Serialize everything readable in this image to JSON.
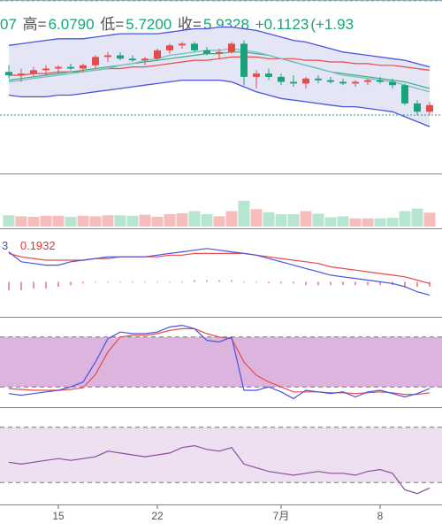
{
  "header": {
    "open_value_fragment": "07",
    "high_label": "高=",
    "high_value": "6.0790",
    "low_label": "低=",
    "low_value": "5.7200",
    "close_label": "收=",
    "close_value": "5.9328",
    "change": "+0.1123",
    "change_pct_fragment": "(+1.93"
  },
  "colors": {
    "up": "#e84a4a",
    "down": "#1aa37a",
    "band_fill": "#e4e6f6",
    "band_line": "#4a52e0",
    "macd_line": "#4a52e0",
    "signal_line": "#e84a4a",
    "kdj_fill": "#dcb4de",
    "rsi_fill": "#efe0f1"
  },
  "chart_data": [
    {
      "type": "candlestick",
      "name": "price",
      "ylim": [
        5.4,
        6.2
      ],
      "candles": [
        {
          "o": 5.98,
          "h": 6.02,
          "l": 5.94,
          "c": 5.96
        },
        {
          "o": 5.96,
          "h": 6.0,
          "l": 5.92,
          "c": 5.97
        },
        {
          "o": 5.97,
          "h": 6.01,
          "l": 5.95,
          "c": 5.99
        },
        {
          "o": 5.99,
          "h": 6.02,
          "l": 5.96,
          "c": 6.0
        },
        {
          "o": 6.0,
          "h": 6.02,
          "l": 5.97,
          "c": 6.01
        },
        {
          "o": 6.01,
          "h": 6.03,
          "l": 5.99,
          "c": 6.0
        },
        {
          "o": 6.0,
          "h": 6.03,
          "l": 5.98,
          "c": 6.02
        },
        {
          "o": 6.02,
          "h": 6.08,
          "l": 6.0,
          "c": 6.07
        },
        {
          "o": 6.07,
          "h": 6.1,
          "l": 6.04,
          "c": 6.08
        },
        {
          "o": 6.08,
          "h": 6.1,
          "l": 6.05,
          "c": 6.06
        },
        {
          "o": 6.06,
          "h": 6.08,
          "l": 6.04,
          "c": 6.05
        },
        {
          "o": 6.05,
          "h": 6.07,
          "l": 6.02,
          "c": 6.06
        },
        {
          "o": 6.06,
          "h": 6.12,
          "l": 6.05,
          "c": 6.11
        },
        {
          "o": 6.11,
          "h": 6.15,
          "l": 6.09,
          "c": 6.14
        },
        {
          "o": 6.14,
          "h": 6.16,
          "l": 6.12,
          "c": 6.15
        },
        {
          "o": 6.15,
          "h": 6.16,
          "l": 6.1,
          "c": 6.11
        },
        {
          "o": 6.11,
          "h": 6.13,
          "l": 6.08,
          "c": 6.09
        },
        {
          "o": 6.09,
          "h": 6.12,
          "l": 6.06,
          "c": 6.1
        },
        {
          "o": 6.1,
          "h": 6.16,
          "l": 6.09,
          "c": 6.15
        },
        {
          "o": 6.15,
          "h": 6.17,
          "l": 5.9,
          "c": 5.95
        },
        {
          "o": 5.95,
          "h": 5.99,
          "l": 5.88,
          "c": 5.97
        },
        {
          "o": 5.97,
          "h": 6.0,
          "l": 5.93,
          "c": 5.95
        },
        {
          "o": 5.95,
          "h": 5.97,
          "l": 5.9,
          "c": 5.92
        },
        {
          "o": 5.92,
          "h": 5.96,
          "l": 5.89,
          "c": 5.91
        },
        {
          "o": 5.91,
          "h": 5.95,
          "l": 5.88,
          "c": 5.94
        },
        {
          "o": 5.94,
          "h": 5.96,
          "l": 5.91,
          "c": 5.93
        },
        {
          "o": 5.93,
          "h": 5.95,
          "l": 5.91,
          "c": 5.92
        },
        {
          "o": 5.92,
          "h": 5.94,
          "l": 5.9,
          "c": 5.91
        },
        {
          "o": 5.91,
          "h": 5.93,
          "l": 5.89,
          "c": 5.92
        },
        {
          "o": 5.92,
          "h": 5.94,
          "l": 5.9,
          "c": 5.93
        },
        {
          "o": 5.93,
          "h": 5.95,
          "l": 5.91,
          "c": 5.92
        },
        {
          "o": 5.92,
          "h": 5.94,
          "l": 5.88,
          "c": 5.9
        },
        {
          "o": 5.9,
          "h": 5.91,
          "l": 5.78,
          "c": 5.79
        },
        {
          "o": 5.79,
          "h": 5.81,
          "l": 5.72,
          "c": 5.74
        },
        {
          "o": 5.74,
          "h": 5.8,
          "l": 5.72,
          "c": 5.78
        }
      ],
      "ma": [
        {
          "name": "MA-red",
          "color": "#e84a4a",
          "values": [
            5.96,
            5.96,
            5.97,
            5.97,
            5.98,
            5.98,
            5.98,
            5.99,
            6.0,
            6.0,
            6.01,
            6.01,
            6.02,
            6.03,
            6.04,
            6.05,
            6.05,
            6.06,
            6.07,
            6.07,
            6.07,
            6.06,
            6.06,
            6.06,
            6.05,
            6.05,
            6.04,
            6.04,
            6.03,
            6.03,
            6.02,
            6.02,
            6.01,
            6.0,
            5.99
          ]
        },
        {
          "name": "MA-green",
          "color": "#3fae7e",
          "values": [
            5.93,
            5.94,
            5.95,
            5.96,
            5.97,
            5.98,
            5.99,
            6.0,
            6.01,
            6.02,
            6.03,
            6.04,
            6.05,
            6.06,
            6.07,
            6.08,
            6.09,
            6.09,
            6.1,
            6.1,
            6.09,
            6.08,
            6.06,
            6.04,
            6.02,
            6.0,
            5.98,
            5.97,
            5.96,
            5.95,
            5.94,
            5.93,
            5.92,
            5.9,
            5.88
          ]
        },
        {
          "name": "MA-teal",
          "color": "#6fbfc0",
          "values": [
            5.92,
            5.93,
            5.94,
            5.95,
            5.96,
            5.97,
            5.98,
            5.99,
            6.0,
            6.02,
            6.03,
            6.05,
            6.06,
            6.08,
            6.09,
            6.1,
            6.11,
            6.11,
            6.12,
            6.11,
            6.1,
            6.08,
            6.06,
            6.04,
            6.02,
            6.0,
            5.98,
            5.96,
            5.95,
            5.94,
            5.93,
            5.92,
            5.9,
            5.88,
            5.86
          ]
        }
      ],
      "band_upper": [
        6.14,
        6.15,
        6.16,
        6.17,
        6.18,
        6.18,
        6.18,
        6.19,
        6.2,
        6.21,
        6.21,
        6.21,
        6.21,
        6.22,
        6.23,
        6.24,
        6.24,
        6.25,
        6.25,
        6.24,
        6.23,
        6.21,
        6.19,
        6.17,
        6.16,
        6.14,
        6.12,
        6.1,
        6.09,
        6.08,
        6.07,
        6.06,
        6.05,
        6.03,
        6.01
      ],
      "band_lower": [
        5.84,
        5.83,
        5.83,
        5.83,
        5.84,
        5.84,
        5.85,
        5.86,
        5.87,
        5.88,
        5.89,
        5.9,
        5.91,
        5.92,
        5.93,
        5.93,
        5.93,
        5.93,
        5.92,
        5.89,
        5.86,
        5.84,
        5.82,
        5.81,
        5.8,
        5.79,
        5.78,
        5.77,
        5.77,
        5.76,
        5.75,
        5.74,
        5.71,
        5.68,
        5.65
      ],
      "reference_level": 5.72
    },
    {
      "type": "bar",
      "name": "volume",
      "ylim": [
        0,
        100
      ],
      "values": [
        22,
        20,
        19,
        21,
        21,
        19,
        21,
        20,
        22,
        22,
        21,
        23,
        19,
        24,
        26,
        30,
        24,
        20,
        30,
        50,
        34,
        28,
        24,
        24,
        30,
        25,
        18,
        20,
        16,
        16,
        16,
        17,
        30,
        35,
        27
      ]
    },
    {
      "type": "line",
      "name": "MACD",
      "legend_value": "0.1932",
      "ylim": [
        -0.2,
        0.3
      ],
      "macd": [
        0.18,
        0.12,
        0.11,
        0.1,
        0.1,
        0.12,
        0.13,
        0.14,
        0.15,
        0.15,
        0.15,
        0.15,
        0.16,
        0.17,
        0.18,
        0.19,
        0.2,
        0.19,
        0.18,
        0.17,
        0.16,
        0.14,
        0.12,
        0.1,
        0.08,
        0.06,
        0.04,
        0.03,
        0.02,
        0.01,
        0.0,
        -0.01,
        -0.03,
        -0.06,
        -0.08
      ],
      "signal": [
        0.17,
        0.15,
        0.14,
        0.13,
        0.13,
        0.13,
        0.13,
        0.14,
        0.14,
        0.15,
        0.15,
        0.15,
        0.15,
        0.16,
        0.16,
        0.17,
        0.17,
        0.17,
        0.17,
        0.17,
        0.16,
        0.15,
        0.14,
        0.13,
        0.12,
        0.11,
        0.09,
        0.08,
        0.07,
        0.06,
        0.05,
        0.04,
        0.03,
        0.01,
        -0.01
      ],
      "histogram": [
        -0.05,
        -0.05,
        -0.04,
        -0.04,
        -0.03,
        -0.02,
        -0.01,
        0.0,
        0.0,
        0.0,
        0.0,
        0.0,
        0.0,
        0.0,
        0.0,
        0.01,
        0.01,
        0.01,
        0.01,
        0.0,
        0.0,
        -0.01,
        -0.01,
        -0.01,
        -0.02,
        -0.02,
        -0.02,
        -0.02,
        -0.02,
        -0.02,
        -0.02,
        -0.02,
        -0.03,
        -0.03,
        -0.03
      ]
    },
    {
      "type": "line",
      "name": "KDJ",
      "ylim": [
        0,
        100
      ],
      "band": [
        20,
        80
      ],
      "k": [
        12,
        10,
        12,
        14,
        16,
        20,
        26,
        50,
        78,
        86,
        84,
        84,
        86,
        92,
        94,
        90,
        76,
        74,
        80,
        16,
        16,
        20,
        14,
        6,
        16,
        14,
        12,
        14,
        8,
        14,
        16,
        12,
        8,
        12,
        18
      ],
      "d": [
        18,
        17,
        16,
        16,
        16,
        17,
        19,
        35,
        62,
        80,
        82,
        82,
        84,
        88,
        90,
        90,
        84,
        80,
        78,
        50,
        34,
        26,
        20,
        14,
        14,
        14,
        13,
        13,
        12,
        13,
        14,
        13,
        11,
        11,
        13
      ]
    },
    {
      "type": "line",
      "name": "RSI",
      "ylim": [
        0,
        100
      ],
      "band": [
        20,
        80
      ],
      "values": [
        42,
        40,
        42,
        44,
        46,
        44,
        46,
        48,
        54,
        52,
        50,
        48,
        50,
        52,
        58,
        60,
        56,
        54,
        58,
        40,
        36,
        32,
        30,
        28,
        30,
        32,
        30,
        30,
        28,
        32,
        34,
        30,
        12,
        8,
        14
      ]
    },
    {
      "type": "axis",
      "name": "x-axis",
      "tick_labels": [
        "15",
        "22",
        "7月",
        "8"
      ]
    }
  ]
}
